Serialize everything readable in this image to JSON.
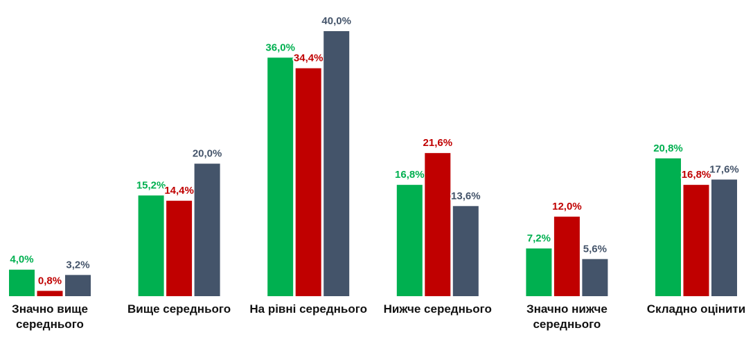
{
  "chart_data": {
    "type": "bar",
    "categories": [
      "Значно вище середнього",
      "Вище середнього",
      "На рівні середнього",
      "Нижче середнього",
      "Значно нижче середнього",
      "Складно оцінити"
    ],
    "series": [
      {
        "color": "#00b050",
        "values": [
          4.0,
          15.2,
          36.0,
          16.8,
          7.2,
          20.8
        ],
        "value_labels": [
          "4,0%",
          "15,2%",
          "36,0%",
          "16,8%",
          "7,2%",
          "20,8%"
        ]
      },
      {
        "color": "#c00000",
        "values": [
          0.8,
          14.4,
          34.4,
          21.6,
          12.0,
          16.8
        ],
        "value_labels": [
          "0,8%",
          "14,4%",
          "34,4%",
          "21,6%",
          "12,0%",
          "16,8%"
        ]
      },
      {
        "color": "#44546a",
        "values": [
          3.2,
          20.0,
          40.0,
          13.6,
          5.6,
          17.6
        ],
        "value_labels": [
          "3,2%",
          "20,0%",
          "40,0%",
          "13,6%",
          "5,6%",
          "17,6%"
        ]
      }
    ]
  }
}
